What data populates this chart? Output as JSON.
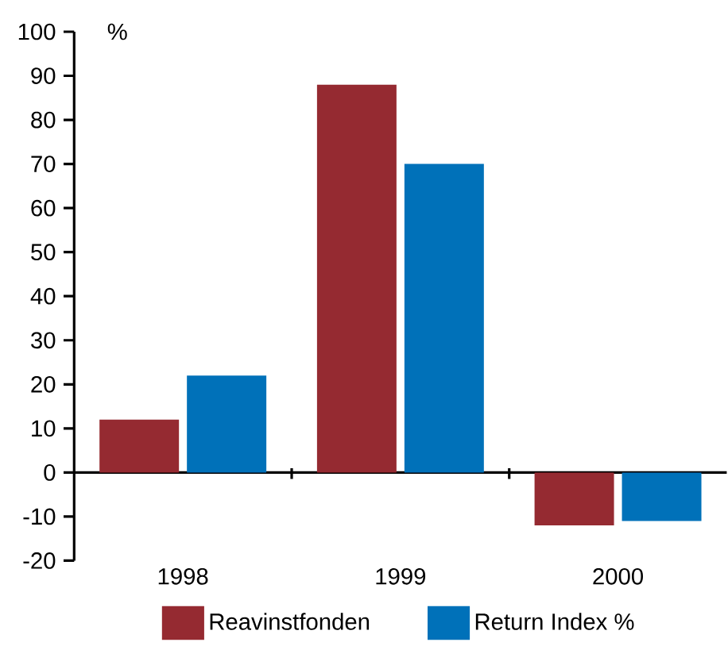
{
  "chart_data": {
    "type": "bar",
    "ylabel": "%",
    "categories": [
      "1998",
      "1999",
      "2000"
    ],
    "series": [
      {
        "name": "Reavinstfonden",
        "color": "#952a31",
        "values": [
          12,
          88,
          -12
        ]
      },
      {
        "name": "Return Index %",
        "color": "#0071b9",
        "values": [
          22,
          70,
          -11
        ]
      }
    ],
    "ylim": [
      -20,
      100
    ],
    "yticks": [
      -20,
      -10,
      0,
      10,
      20,
      30,
      40,
      50,
      60,
      70,
      80,
      90,
      100
    ],
    "legend": "bottom"
  }
}
